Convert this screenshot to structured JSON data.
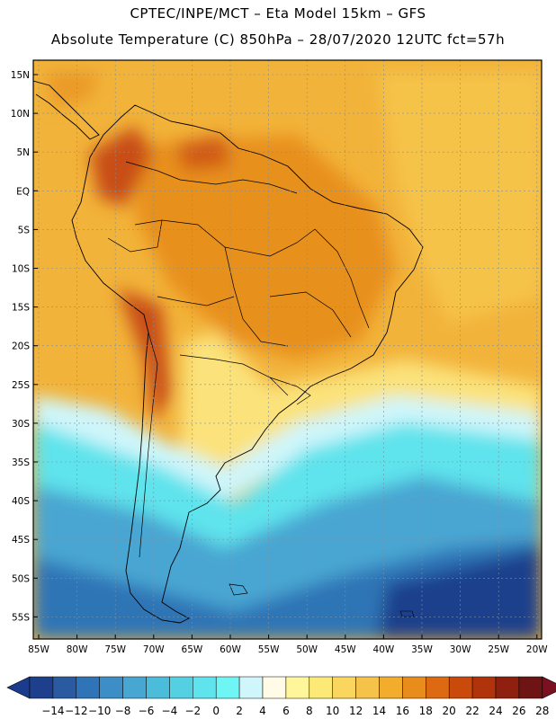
{
  "header": {
    "title_line1": "CPTEC/INPE/MCT –  Eta Model 15km – GFS",
    "title_line2": "Absolute Temperature (C) 850hPa – 28/07/2020 12UTC fct=57h"
  },
  "map": {
    "lat_labels": [
      "15N",
      "10N",
      "5N",
      "EQ",
      "5S",
      "10S",
      "15S",
      "20S",
      "25S",
      "30S",
      "35S",
      "40S",
      "45S",
      "50S",
      "55S"
    ],
    "lon_labels": [
      "85W",
      "80W",
      "75W",
      "70W",
      "65W",
      "60W",
      "55W",
      "50W",
      "45W",
      "40W",
      "35W",
      "30W",
      "25W",
      "20W"
    ],
    "gridlines": true
  },
  "colorbar": {
    "labels": [
      "-14",
      "-12",
      "-10",
      "-8",
      "-6",
      "-4",
      "-2",
      "0",
      "2",
      "4",
      "6",
      "8",
      "10",
      "12",
      "14",
      "16",
      "18",
      "20",
      "22",
      "24",
      "26",
      "28"
    ],
    "colors": [
      "#1e3f8c",
      "#2a5aa0",
      "#2f74b6",
      "#3d8ec6",
      "#48a6d2",
      "#4bbcd9",
      "#55d0e2",
      "#5fe3ec",
      "#70f5f5",
      "#cff6fb",
      "#fffbe6",
      "#fff59a",
      "#fde975",
      "#fbd65e",
      "#f6c34a",
      "#f1ad2b",
      "#e88c1c",
      "#dd6a12",
      "#ca4a0c",
      "#b0330b",
      "#8f200f",
      "#6e1414"
    ],
    "under_color": "#1b3c8c",
    "over_color": "#7a1020"
  }
}
